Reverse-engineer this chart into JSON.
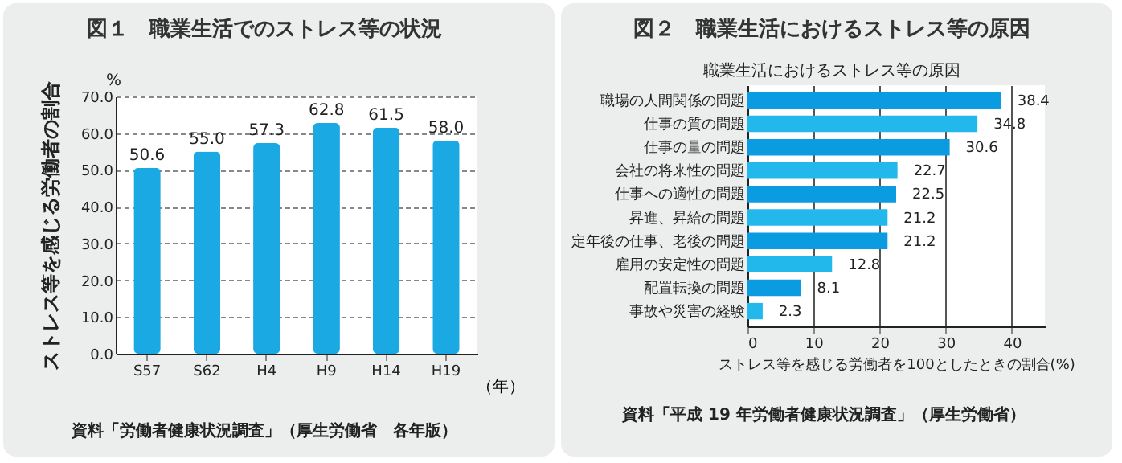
{
  "chart_data": [
    {
      "type": "bar",
      "title": "図１　職業生活でのストレス等の状況",
      "ylabel": "ストレス等を感じる労働者の割合",
      "xlabel": "（年）",
      "categories": [
        "S57",
        "S62",
        "H4",
        "H9",
        "H14",
        "H19"
      ],
      "values": [
        50.6,
        55.0,
        57.3,
        62.8,
        61.5,
        58.0
      ],
      "value_labels": [
        "50.6",
        "55.0",
        "57.3",
        "62.8",
        "61.5",
        "58.0"
      ],
      "color": "#1aa9e3",
      "ylim": [
        0,
        70
      ],
      "yticks": [
        {
          "value": 0,
          "label": "0.0"
        },
        {
          "value": 10,
          "label": "10.0"
        },
        {
          "value": 20,
          "label": "20.0"
        },
        {
          "value": 30,
          "label": "30.0"
        },
        {
          "value": 40,
          "label": "40.0"
        },
        {
          "value": 50,
          "label": "50.0"
        },
        {
          "value": 60,
          "label": "60.0"
        },
        {
          "value": 70,
          "label": "70.0"
        }
      ],
      "grid": "y",
      "annotations": [
        "%",
        "資料「労働者健康状況調査」（厚生労働省　各年版）"
      ]
    },
    {
      "type": "bar",
      "orientation": "horizontal",
      "title": "図２　職業生活におけるストレス等の原因",
      "subtitle": "職業生活におけるストレス等の原因",
      "xlabel": "ストレス等を感じる労働者を100としたときの割合(%)",
      "categories": [
        "職場の人間関係の問題",
        "仕事の質の問題",
        "仕事の量の問題",
        "会社の将来性の問題",
        "仕事への適性の問題",
        "昇進、昇給の問題",
        "定年後の仕事、老後の問題",
        "雇用の安定性の問題",
        "配置転換の問題",
        "事故や災害の経験"
      ],
      "values": [
        38.4,
        34.8,
        30.6,
        22.7,
        22.5,
        21.2,
        21.2,
        12.8,
        8.1,
        2.3
      ],
      "colors": [
        "#0a9be0",
        "#22b8ec",
        "#0a9be0",
        "#22b8ec",
        "#0a9be0",
        "#22b8ec",
        "#0a9be0",
        "#22b8ec",
        "#0a9be0",
        "#22b8ec"
      ],
      "xlim": [
        0,
        45
      ],
      "xticks": [
        0,
        10,
        20,
        30,
        40
      ],
      "grid": "x",
      "data_labels": true,
      "annotations": [
        "資料「平成 19 年労働者健康状況調査」（厚生労働省）"
      ]
    }
  ]
}
